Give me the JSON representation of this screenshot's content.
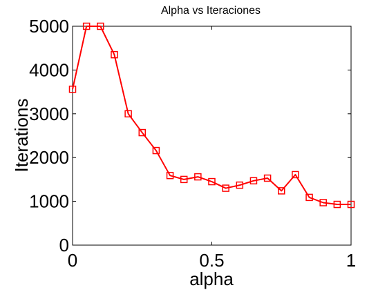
{
  "chart_data": {
    "type": "line",
    "title": "Alpha vs Iteraciones",
    "xlabel": "alpha",
    "ylabel": "Iterations",
    "xlim": [
      0,
      1
    ],
    "ylim": [
      0,
      5000
    ],
    "x_ticks": [
      0,
      0.5,
      1
    ],
    "x_tick_labels": [
      "0",
      "0.5",
      "1"
    ],
    "y_ticks": [
      0,
      1000,
      2000,
      3000,
      4000,
      5000
    ],
    "y_tick_labels": [
      "0",
      "1000",
      "2000",
      "3000",
      "4000",
      "5000"
    ],
    "grid": false,
    "series": [
      {
        "color": "#ff0000",
        "marker": "square",
        "x": [
          0,
          0.05,
          0.1,
          0.15,
          0.2,
          0.25,
          0.3,
          0.35,
          0.4,
          0.45,
          0.5,
          0.55,
          0.6,
          0.65,
          0.7,
          0.75,
          0.8,
          0.85,
          0.9,
          0.95,
          1.0
        ],
        "values": [
          3560,
          5000,
          5000,
          4350,
          3000,
          2570,
          2160,
          1590,
          1500,
          1560,
          1450,
          1300,
          1370,
          1470,
          1530,
          1240,
          1610,
          1090,
          970,
          930,
          930
        ]
      }
    ]
  }
}
